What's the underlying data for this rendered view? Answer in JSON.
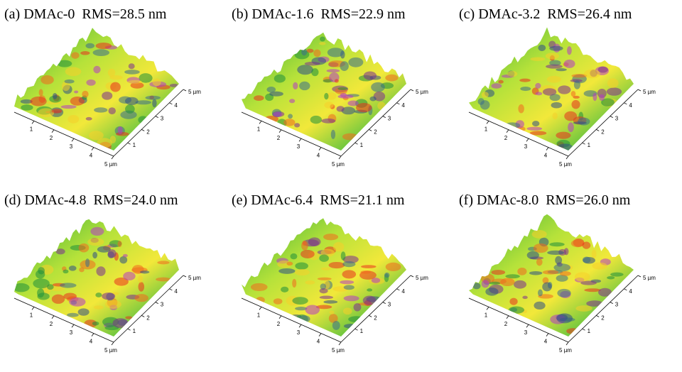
{
  "panels": [
    {
      "title": "(a) DMAc-0  RMS=28.5 nm",
      "front_axis_ticks": [
        "1",
        "2",
        "3",
        "4",
        "5 µm"
      ],
      "side_axis_ticks": [
        "1",
        "2",
        "3",
        "4",
        "5 µm"
      ]
    },
    {
      "title": "(b) DMAc-1.6  RMS=22.9 nm",
      "front_axis_ticks": [
        "1",
        "2",
        "3",
        "4",
        "5 µm"
      ],
      "side_axis_ticks": [
        "1",
        "2",
        "3",
        "4",
        "5 µm"
      ]
    },
    {
      "title": "(c) DMAc-3.2  RMS=26.4 nm",
      "front_axis_ticks": [
        "1",
        "2",
        "3",
        "4",
        "5 µm"
      ],
      "side_axis_ticks": [
        "1",
        "2",
        "3",
        "4",
        "5 µm"
      ]
    },
    {
      "title": "(d) DMAc-4.8  RMS=24.0 nm",
      "front_axis_ticks": [
        "1",
        "2",
        "3",
        "4",
        "5 µm"
      ],
      "side_axis_ticks": [
        "1",
        "2",
        "3",
        "4",
        "5 µm"
      ]
    },
    {
      "title": "(e) DMAc-6.4  RMS=21.1 nm",
      "front_axis_ticks": [
        "1",
        "2",
        "3",
        "4",
        "5 µm"
      ],
      "side_axis_ticks": [
        "1",
        "2",
        "3",
        "4",
        "5 µm"
      ]
    },
    {
      "title": "(f) DMAc-8.0  RMS=26.0 nm",
      "front_axis_ticks": [
        "1",
        "2",
        "3",
        "4",
        "5 µm"
      ],
      "side_axis_ticks": [
        "1",
        "2",
        "3",
        "4",
        "5 µm"
      ]
    }
  ]
}
